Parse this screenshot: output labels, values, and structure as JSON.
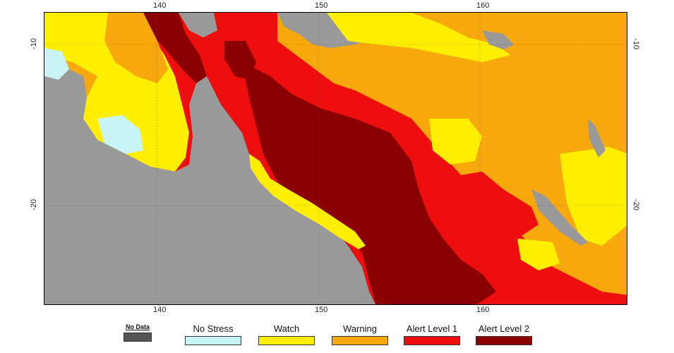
{
  "axes": {
    "lon_top": [
      "140",
      "150",
      "160"
    ],
    "lon_bottom": [
      "140",
      "150",
      "160"
    ],
    "lat_left": [
      "-10",
      "-20"
    ],
    "lat_right": [
      "-10",
      "-20"
    ]
  },
  "legend": [
    {
      "label": "No Data",
      "color": "#555555",
      "small": true
    },
    {
      "label": "No Stress",
      "color": "#c8f4f8"
    },
    {
      "label": "Watch",
      "color": "#ffee00"
    },
    {
      "label": "Warning",
      "color": "#f7a80c"
    },
    {
      "label": "Alert Level 1",
      "color": "#ee0e0e"
    },
    {
      "label": "Alert Level 2",
      "color": "#8b0000"
    }
  ],
  "colors": {
    "land": "#999999",
    "no_stress": "#c8f4f8",
    "watch": "#ffee00",
    "warning": "#f7a80c",
    "alert1": "#ee0e0e",
    "alert2": "#8b0000"
  }
}
